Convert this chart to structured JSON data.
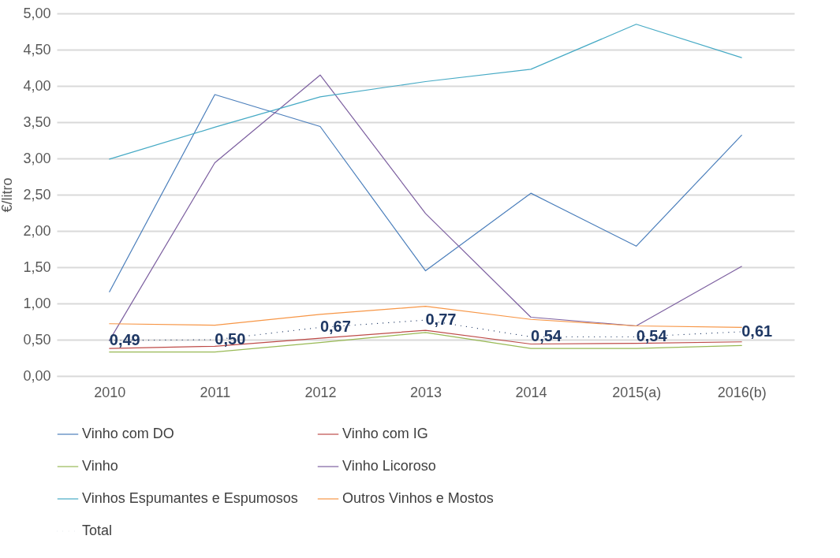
{
  "chart_data": {
    "type": "line",
    "ylabel": "€/litro",
    "categories": [
      "2010",
      "2011",
      "2012",
      "2013",
      "2014",
      "2015(a)",
      "2016(b)"
    ],
    "ylim": [
      0,
      5
    ],
    "yticks": [
      {
        "value": 0,
        "label": "0,00"
      },
      {
        "value": 0.5,
        "label": "0,50"
      },
      {
        "value": 1,
        "label": "1,00"
      },
      {
        "value": 1.5,
        "label": "1,50"
      },
      {
        "value": 2,
        "label": "2,00"
      },
      {
        "value": 2.5,
        "label": "2,50"
      },
      {
        "value": 3,
        "label": "3,00"
      },
      {
        "value": 3.5,
        "label": "3,50"
      },
      {
        "value": 4,
        "label": "4,00"
      },
      {
        "value": 4.5,
        "label": "4,50"
      },
      {
        "value": 5,
        "label": "5,00"
      }
    ],
    "grid": "y",
    "legend": "bottom",
    "marker": "none",
    "series": [
      {
        "name": "Vinho com DO",
        "color": "#4a7ebb",
        "values": [
          1.16,
          3.88,
          3.44,
          1.45,
          2.52,
          1.79,
          3.32
        ]
      },
      {
        "name": "Vinho com IG",
        "color": "#be4b48",
        "values": [
          0.38,
          0.41,
          0.52,
          0.63,
          0.44,
          0.45,
          0.47
        ]
      },
      {
        "name": "Vinho",
        "color": "#98b954",
        "values": [
          0.33,
          0.33,
          0.46,
          0.6,
          0.38,
          0.38,
          0.42
        ]
      },
      {
        "name": "Vinho Licoroso",
        "color": "#7d60a0",
        "values": [
          0.49,
          2.94,
          4.15,
          2.24,
          0.81,
          0.69,
          1.51
        ]
      },
      {
        "name": "Vinhos Espumantes e Espumosos",
        "color": "#46aac5",
        "values": [
          2.99,
          3.43,
          3.85,
          4.06,
          4.23,
          4.85,
          4.39
        ]
      },
      {
        "name": "Outros Vinhos e Mostos",
        "color": "#f79646",
        "values": [
          0.72,
          0.7,
          0.85,
          0.96,
          0.78,
          0.69,
          0.67
        ]
      },
      {
        "name": "Total",
        "color": "#1f3864",
        "line_style": "dotted",
        "values": [
          0.49,
          0.5,
          0.67,
          0.77,
          0.54,
          0.54,
          0.61
        ],
        "value_labels": [
          "0,49",
          "0,50",
          "0,67",
          "0,77",
          "0,54",
          "0,54",
          "0,61"
        ]
      }
    ]
  }
}
